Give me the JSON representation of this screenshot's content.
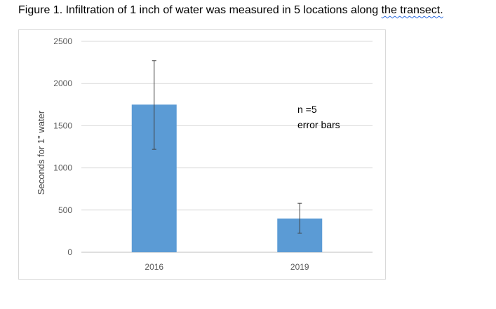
{
  "caption": {
    "main": "Figure 1.  Infiltration of 1 inch of water was measured in 5 locations along ",
    "underlined": "the transect."
  },
  "chart_data": {
    "type": "bar",
    "categories": [
      "2016",
      "2019"
    ],
    "values": [
      1750,
      400
    ],
    "error_low": [
      1220,
      225
    ],
    "error_high": [
      2270,
      580
    ],
    "title": "",
    "xlabel": "",
    "ylabel": "Seconds for 1\" water",
    "ylim": [
      0,
      2500
    ],
    "yticks": [
      0,
      500,
      1000,
      1500,
      2000,
      2500
    ],
    "grid": true,
    "bar_color": "#5b9bd5",
    "annotations": [
      "n =5",
      "error bars"
    ]
  }
}
